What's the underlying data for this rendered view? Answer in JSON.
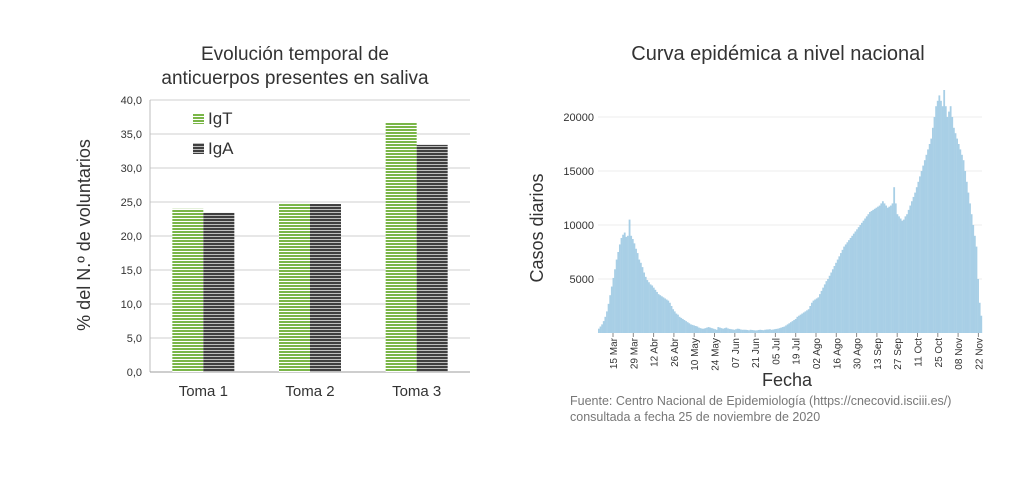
{
  "chart_data": [
    {
      "type": "bar",
      "title_lines": [
        "Evolución temporal de",
        "anticuerpos presentes en saliva"
      ],
      "ylabel": "% del N.º de voluntarios",
      "xlabel": "",
      "categories": [
        "Toma 1",
        "Toma 2",
        "Toma 3"
      ],
      "ylim": [
        0,
        40
      ],
      "yticks": [
        "0,0",
        "5,0",
        "10,0",
        "15,0",
        "20,0",
        "25,0",
        "30,0",
        "35,0",
        "40,0"
      ],
      "grid": true,
      "legend_position": "top-left",
      "series": [
        {
          "name": "IgT",
          "values": [
            24.0,
            24.7,
            36.7
          ],
          "color": "#7ab648"
        },
        {
          "name": "IgA",
          "values": [
            23.4,
            24.7,
            33.4
          ],
          "color": "#3f3f3f"
        }
      ]
    },
    {
      "type": "bar",
      "title": "Curva epidémica a nivel nacional",
      "xlabel": "Fecha",
      "ylabel": "Casos diarios",
      "ylim": [
        0,
        22500
      ],
      "yticks": [
        "5000",
        "10000",
        "15000",
        "20000"
      ],
      "ytick_values": [
        5000,
        10000,
        15000,
        20000
      ],
      "xticks": [
        "15 Mar",
        "29 Mar",
        "12 Abr",
        "26 Abr",
        "10 May",
        "24 May",
        "07 Jun",
        "21 Jun",
        "05 Jul",
        "19 Jul",
        "02 Ago",
        "16 Ago",
        "30 Ago",
        "13 Sep",
        "27 Sep",
        "11 Oct",
        "25 Oct",
        "08 Nov",
        "22 Nov"
      ],
      "x_start": "01 Mar",
      "bar_color": "#a8cfe6",
      "values": [
        400,
        600,
        800,
        1100,
        1500,
        2000,
        2700,
        3500,
        4300,
        5100,
        5900,
        6800,
        7500,
        8200,
        8800,
        9100,
        9300,
        8900,
        9000,
        10500,
        9000,
        8700,
        8300,
        7800,
        7400,
        6800,
        6500,
        6100,
        5600,
        5200,
        4900,
        4700,
        4500,
        4400,
        4200,
        4000,
        3800,
        3600,
        3500,
        3400,
        3300,
        3200,
        3100,
        3000,
        2800,
        2500,
        2200,
        2000,
        1800,
        1700,
        1500,
        1400,
        1300,
        1200,
        1100,
        1000,
        900,
        800,
        750,
        700,
        650,
        600,
        500,
        450,
        400,
        400,
        450,
        500,
        550,
        500,
        450,
        400,
        350,
        300,
        550,
        500,
        450,
        400,
        450,
        500,
        420,
        380,
        350,
        330,
        300,
        350,
        400,
        380,
        320,
        300,
        300,
        300,
        280,
        250,
        300,
        280,
        260,
        240,
        250,
        280,
        300,
        280,
        260,
        300,
        320,
        330,
        350,
        300,
        320,
        350,
        380,
        400,
        450,
        500,
        550,
        600,
        700,
        800,
        900,
        1000,
        1100,
        1200,
        1300,
        1500,
        1600,
        1700,
        1800,
        1900,
        2000,
        2100,
        2200,
        2500,
        2800,
        3000,
        3100,
        3200,
        3300,
        3600,
        3900,
        4200,
        4500,
        4800,
        5000,
        5300,
        5600,
        5900,
        6200,
        6500,
        6800,
        7100,
        7400,
        7700,
        8000,
        8200,
        8400,
        8600,
        8800,
        9000,
        9200,
        9400,
        9600,
        9800,
        10000,
        10200,
        10400,
        10600,
        10800,
        11000,
        11200,
        11300,
        11400,
        11500,
        11600,
        11700,
        11800,
        12000,
        12200,
        12000,
        11800,
        11600,
        11700,
        11800,
        12000,
        13500,
        12000,
        11000,
        10800,
        10600,
        10400,
        10500,
        10800,
        11000,
        11400,
        11800,
        12200,
        12600,
        13000,
        13500,
        14000,
        14500,
        15000,
        15500,
        16000,
        16500,
        17000,
        17500,
        18000,
        19000,
        20000,
        21000,
        21500,
        22000,
        21500,
        21000,
        22500,
        21000,
        20000,
        20500,
        21000,
        20000,
        19000,
        18500,
        18000,
        17500,
        17000,
        16500,
        16000,
        15000,
        14000,
        13000,
        12000,
        11000,
        10000,
        9000,
        8000,
        5000,
        2800,
        1600
      ],
      "source_lines": [
        "Fuente: Centro Nacional de Epidemiología (https://cnecovid.isciii.es/)",
        "consultada a fecha 25 de noviembre de 2020"
      ]
    }
  ]
}
